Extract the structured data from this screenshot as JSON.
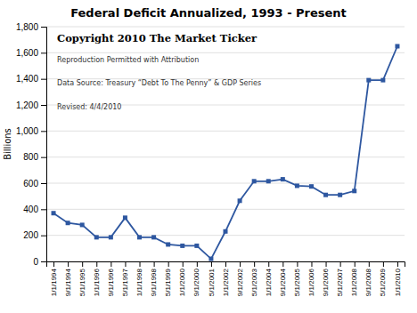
{
  "chart_data": {
    "type": "line",
    "title": "Federal Deficit Annualized, 1993 - Present",
    "ylabel": "Billions",
    "categories": [
      "1/1/1994",
      "9/1/1994",
      "5/1/1995",
      "1/1/1996",
      "9/1/1996",
      "5/1/1997",
      "1/1/1998",
      "9/1/1998",
      "5/1/1999",
      "1/1/2000",
      "9/1/2000",
      "5/1/2001",
      "1/1/2002",
      "9/1/2002",
      "5/1/2003",
      "1/1/2004",
      "9/1/2004",
      "5/1/2005",
      "1/1/2006",
      "9/1/2006",
      "5/1/2007",
      "1/1/2008",
      "9/1/2008",
      "5/1/2009",
      "1/1/2010"
    ],
    "values": [
      370,
      295,
      280,
      185,
      185,
      335,
      185,
      185,
      130,
      120,
      120,
      20,
      230,
      465,
      615,
      615,
      630,
      580,
      575,
      510,
      510,
      540,
      1390,
      1390,
      1650
    ],
    "color": "#2e57a0",
    "marker": "square",
    "ylim": [
      0,
      1800
    ],
    "yticks": [
      0,
      200,
      400,
      600,
      800,
      {
        "value": 1000,
        "label": "1,000"
      },
      {
        "value": 1200,
        "label": "1,200"
      },
      {
        "value": 1400,
        "label": "1,400"
      },
      {
        "value": 1600,
        "label": "1,600"
      },
      {
        "value": 1800,
        "label": "1,800"
      }
    ],
    "grid": true,
    "annotations": [
      "Copyright 2010 The Market Ticker",
      "Reproduction Permitted with Attribution",
      "Data Source:  Treasury “Debt To The Penny” & GDP Series",
      "Revised: 4/4/2010"
    ]
  }
}
